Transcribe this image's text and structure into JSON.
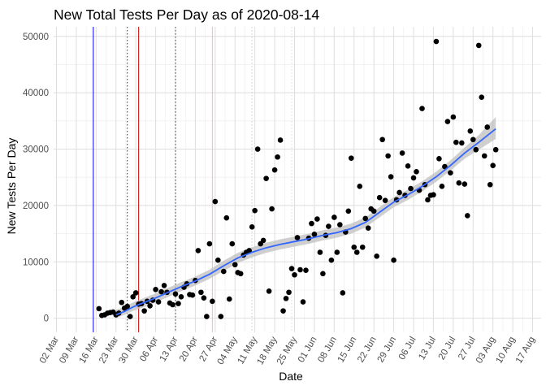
{
  "chart_data": {
    "type": "scatter",
    "title": "New Total Tests Per Day as of 2020-08-14",
    "xlabel": "Date",
    "ylabel": "New Tests Per Day",
    "x_unit": "days since 2020-03-01",
    "xlim": [
      0,
      172
    ],
    "ylim": [
      -2500,
      51700
    ],
    "x_ticks": [
      {
        "day": 1,
        "label": "02 Mar"
      },
      {
        "day": 8,
        "label": "09 Mar"
      },
      {
        "day": 15,
        "label": "16 Mar"
      },
      {
        "day": 22,
        "label": "23 Mar"
      },
      {
        "day": 29,
        "label": "30 Mar"
      },
      {
        "day": 36,
        "label": "06 Apr"
      },
      {
        "day": 43,
        "label": "13 Apr"
      },
      {
        "day": 50,
        "label": "20 Apr"
      },
      {
        "day": 57,
        "label": "27 Apr"
      },
      {
        "day": 64,
        "label": "04 May"
      },
      {
        "day": 71,
        "label": "11 May"
      },
      {
        "day": 78,
        "label": "18 May"
      },
      {
        "day": 85,
        "label": "25 May"
      },
      {
        "day": 92,
        "label": "01 Jun"
      },
      {
        "day": 99,
        "label": "08 Jun"
      },
      {
        "day": 106,
        "label": "15 Jun"
      },
      {
        "day": 113,
        "label": "22 Jun"
      },
      {
        "day": 120,
        "label": "29 Jun"
      },
      {
        "day": 127,
        "label": "06 Jul"
      },
      {
        "day": 134,
        "label": "13 Jul"
      },
      {
        "day": 141,
        "label": "20 Jul"
      },
      {
        "day": 148,
        "label": "27 Jul"
      },
      {
        "day": 155,
        "label": "03 Aug"
      },
      {
        "day": 162,
        "label": "10 Aug"
      },
      {
        "day": 169,
        "label": "17 Aug"
      }
    ],
    "y_ticks": [
      0,
      10000,
      20000,
      30000,
      40000,
      50000
    ],
    "y_tick_labels": [
      "0",
      "10000",
      "20000",
      "30000",
      "40000",
      "50000"
    ],
    "grid": true,
    "vlines": [
      {
        "day": 14,
        "color": "#0000ff",
        "style": "solid"
      },
      {
        "day": 26,
        "color": "#333333",
        "style": "dotted"
      },
      {
        "day": 30,
        "color": "#cc0000",
        "style": "solid"
      },
      {
        "day": 43,
        "color": "#333333",
        "style": "dotted"
      },
      {
        "day": 56,
        "color": "#f4b8b8",
        "style": "solid"
      },
      {
        "day": 70,
        "color": "#cccccc",
        "style": "dotted"
      },
      {
        "day": 84,
        "color": "#dddddd",
        "style": "dotted"
      }
    ],
    "series": [
      {
        "name": "New Tests Per Day",
        "color": "#000000",
        "points": [
          [
            16,
            1700
          ],
          [
            17,
            500
          ],
          [
            18,
            600
          ],
          [
            19,
            900
          ],
          [
            20,
            1000
          ],
          [
            21,
            1100
          ],
          [
            22,
            600
          ],
          [
            23,
            900
          ],
          [
            24,
            2800
          ],
          [
            25,
            1800
          ],
          [
            26,
            2100
          ],
          [
            27,
            300
          ],
          [
            28,
            3800
          ],
          [
            29,
            4500
          ],
          [
            30,
            2500
          ],
          [
            31,
            2600
          ],
          [
            32,
            1300
          ],
          [
            33,
            3000
          ],
          [
            34,
            2200
          ],
          [
            35,
            3200
          ],
          [
            36,
            5100
          ],
          [
            37,
            2900
          ],
          [
            38,
            4700
          ],
          [
            39,
            5800
          ],
          [
            40,
            4600
          ],
          [
            41,
            2700
          ],
          [
            42,
            2400
          ],
          [
            43,
            4300
          ],
          [
            44,
            2600
          ],
          [
            45,
            3800
          ],
          [
            46,
            5500
          ],
          [
            47,
            6100
          ],
          [
            48,
            4200
          ],
          [
            49,
            4100
          ],
          [
            50,
            6700
          ],
          [
            51,
            12000
          ],
          [
            52,
            4600
          ],
          [
            53,
            3600
          ],
          [
            54,
            300
          ],
          [
            55,
            13200
          ],
          [
            56,
            3000
          ],
          [
            57,
            20700
          ],
          [
            58,
            10300
          ],
          [
            59,
            300
          ],
          [
            60,
            8300
          ],
          [
            61,
            17800
          ],
          [
            62,
            3400
          ],
          [
            63,
            13200
          ],
          [
            64,
            9500
          ],
          [
            65,
            8100
          ],
          [
            66,
            7900
          ],
          [
            67,
            11200
          ],
          [
            68,
            11700
          ],
          [
            69,
            12000
          ],
          [
            70,
            16200
          ],
          [
            71,
            19100
          ],
          [
            72,
            30000
          ],
          [
            73,
            13200
          ],
          [
            74,
            13800
          ],
          [
            75,
            24800
          ],
          [
            76,
            4800
          ],
          [
            77,
            19400
          ],
          [
            78,
            26300
          ],
          [
            79,
            28600
          ],
          [
            80,
            31600
          ],
          [
            81,
            1300
          ],
          [
            82,
            3500
          ],
          [
            83,
            4600
          ],
          [
            84,
            8800
          ],
          [
            85,
            7700
          ],
          [
            86,
            14300
          ],
          [
            87,
            8600
          ],
          [
            88,
            2900
          ],
          [
            89,
            8500
          ],
          [
            90,
            14200
          ],
          [
            91,
            16800
          ],
          [
            92,
            14900
          ],
          [
            93,
            17600
          ],
          [
            94,
            11700
          ],
          [
            95,
            7900
          ],
          [
            96,
            14700
          ],
          [
            97,
            16300
          ],
          [
            98,
            10300
          ],
          [
            99,
            17900
          ],
          [
            100,
            11700
          ],
          [
            101,
            16600
          ],
          [
            102,
            4500
          ],
          [
            103,
            15300
          ],
          [
            104,
            19000
          ],
          [
            105,
            28400
          ],
          [
            106,
            12600
          ],
          [
            107,
            11700
          ],
          [
            108,
            23400
          ],
          [
            109,
            12600
          ],
          [
            110,
            17700
          ],
          [
            111,
            16000
          ],
          [
            112,
            19400
          ],
          [
            113,
            19000
          ],
          [
            114,
            11000
          ],
          [
            115,
            21400
          ],
          [
            116,
            31700
          ],
          [
            117,
            20900
          ],
          [
            118,
            28800
          ],
          [
            119,
            25100
          ],
          [
            120,
            10300
          ],
          [
            121,
            21000
          ],
          [
            122,
            22300
          ],
          [
            123,
            29300
          ],
          [
            124,
            21800
          ],
          [
            125,
            27000
          ],
          [
            126,
            23000
          ],
          [
            127,
            24900
          ],
          [
            128,
            26000
          ],
          [
            129,
            22700
          ],
          [
            130,
            37200
          ],
          [
            131,
            23700
          ],
          [
            132,
            21000
          ],
          [
            133,
            21800
          ],
          [
            134,
            21900
          ],
          [
            135,
            49100
          ],
          [
            136,
            28300
          ],
          [
            137,
            23400
          ],
          [
            138,
            26900
          ],
          [
            139,
            34900
          ],
          [
            140,
            25800
          ],
          [
            141,
            35700
          ],
          [
            142,
            31200
          ],
          [
            143,
            24000
          ],
          [
            144,
            31100
          ],
          [
            145,
            23800
          ],
          [
            146,
            18200
          ],
          [
            147,
            33200
          ],
          [
            148,
            31700
          ],
          [
            149,
            29900
          ],
          [
            150,
            48400
          ],
          [
            151,
            39200
          ],
          [
            152,
            28800
          ],
          [
            153,
            33900
          ],
          [
            154,
            23700
          ],
          [
            155,
            27100
          ],
          [
            156,
            29900
          ]
        ]
      }
    ],
    "smooth": {
      "name": "smoothed trend",
      "color": "#3366ff",
      "band_color": "#bfbfbf",
      "points": [
        [
          22,
          600,
          0,
          1500
        ],
        [
          25,
          1200,
          600,
          2000
        ],
        [
          28,
          2000,
          1300,
          2800
        ],
        [
          32,
          2800,
          2000,
          3600
        ],
        [
          36,
          3600,
          2800,
          4400
        ],
        [
          40,
          4500,
          3700,
          5300
        ],
        [
          45,
          5600,
          4800,
          6400
        ],
        [
          50,
          6600,
          5800,
          7400
        ],
        [
          55,
          7800,
          7000,
          8600
        ],
        [
          60,
          9300,
          8400,
          10200
        ],
        [
          65,
          10700,
          9800,
          11600
        ],
        [
          70,
          11700,
          10800,
          12600
        ],
        [
          75,
          12500,
          11600,
          13400
        ],
        [
          80,
          13100,
          12200,
          14000
        ],
        [
          85,
          13600,
          12700,
          14500
        ],
        [
          90,
          14100,
          13200,
          15000
        ],
        [
          95,
          14700,
          13800,
          15600
        ],
        [
          100,
          15200,
          14300,
          16100
        ],
        [
          105,
          15900,
          15000,
          16800
        ],
        [
          110,
          17000,
          16100,
          17900
        ],
        [
          115,
          18800,
          17900,
          19700
        ],
        [
          120,
          20600,
          19700,
          21500
        ],
        [
          125,
          21900,
          21000,
          22800
        ],
        [
          130,
          23400,
          22500,
          24300
        ],
        [
          135,
          25100,
          24200,
          26000
        ],
        [
          140,
          27100,
          26200,
          28000
        ],
        [
          145,
          29300,
          28300,
          30300
        ],
        [
          150,
          31200,
          29900,
          32500
        ],
        [
          156,
          33600,
          31800,
          35700
        ]
      ]
    }
  }
}
